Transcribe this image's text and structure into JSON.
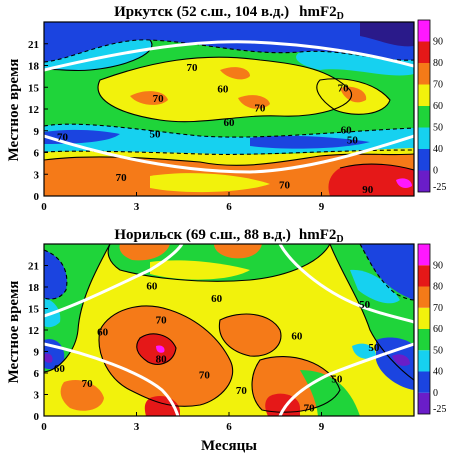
{
  "chart_data": [
    {
      "type": "heatmap",
      "title_main": "Иркутск (52 с.ш., 104 в.д.)",
      "title_param": "hmF2",
      "title_sub": "D",
      "ylabel": "Местное время",
      "xlabel": "",
      "x_ticks": [
        "0",
        "3",
        "6",
        "9"
      ],
      "y_ticks": [
        "0",
        "3",
        "6",
        "9",
        "12",
        "15",
        "18",
        "21"
      ],
      "contour_labels": [
        {
          "text": "70",
          "x": 0.6,
          "y": 8.2
        },
        {
          "text": "60",
          "x": 5.8,
          "y": 14.8
        },
        {
          "text": "70",
          "x": 4.8,
          "y": 17.8
        },
        {
          "text": "70",
          "x": 3.7,
          "y": 13.5
        },
        {
          "text": "70",
          "x": 7.0,
          "y": 12.2
        },
        {
          "text": "60",
          "x": 6.0,
          "y": 10.2
        },
        {
          "text": "50",
          "x": 3.6,
          "y": 8.6
        },
        {
          "text": "60",
          "x": 9.8,
          "y": 9.2
        },
        {
          "text": "50",
          "x": 10.0,
          "y": 7.8
        },
        {
          "text": "70",
          "x": 2.5,
          "y": 2.6
        },
        {
          "text": "70",
          "x": 7.8,
          "y": 1.6
        },
        {
          "text": "90",
          "x": 10.5,
          "y": 1.0
        },
        {
          "text": "70",
          "x": 9.7,
          "y": 15.0
        }
      ]
    },
    {
      "type": "heatmap",
      "title_main": "Норильск (69 с.ш., 88 в.д.)",
      "title_param": "hmF2",
      "title_sub": "D",
      "ylabel": "Местное время",
      "xlabel": "Месяцы",
      "x_ticks": [
        "0",
        "3",
        "6",
        "9"
      ],
      "y_ticks": [
        "0",
        "3",
        "6",
        "9",
        "12",
        "15",
        "18",
        "21"
      ],
      "contour_labels": [
        {
          "text": "60",
          "x": 3.5,
          "y": 18.2
        },
        {
          "text": "60",
          "x": 5.6,
          "y": 16.5
        },
        {
          "text": "70",
          "x": 3.8,
          "y": 13.5
        },
        {
          "text": "60",
          "x": 1.9,
          "y": 11.8
        },
        {
          "text": "60",
          "x": 8.2,
          "y": 11.2
        },
        {
          "text": "50",
          "x": 10.4,
          "y": 15.6
        },
        {
          "text": "50",
          "x": 10.7,
          "y": 9.6
        },
        {
          "text": "80",
          "x": 3.8,
          "y": 8.0
        },
        {
          "text": "70",
          "x": 5.2,
          "y": 5.8
        },
        {
          "text": "70",
          "x": 6.4,
          "y": 3.6
        },
        {
          "text": "70",
          "x": 1.4,
          "y": 4.6
        },
        {
          "text": "60",
          "x": 0.5,
          "y": 6.7
        },
        {
          "text": "50",
          "x": 9.5,
          "y": 5.2
        },
        {
          "text": "70",
          "x": 8.6,
          "y": 1.2
        }
      ]
    }
  ],
  "colorbar": {
    "ticks": [
      "-25",
      "0",
      "40",
      "50",
      "60",
      "70",
      "80",
      "90"
    ],
    "colors": [
      "#6a1dc8",
      "#1b44e0",
      "#16d1f0",
      "#1fd43a",
      "#f2f20c",
      "#f57a18",
      "#e51818",
      "#ff18ff"
    ]
  }
}
